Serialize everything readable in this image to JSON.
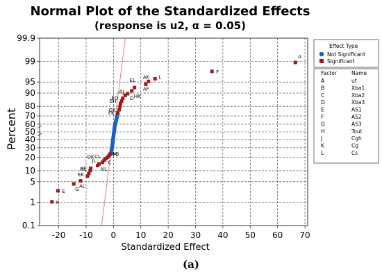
{
  "chart_data": {
    "type": "scatter",
    "title": "Normal Plot of the Standardized Effects",
    "subtitle": "(response is u2, α = 0.05)",
    "xlabel": "Standardized Effect",
    "ylabel": "Percent",
    "xlim": [
      -27,
      71
    ],
    "x_ticks": [
      -20,
      -10,
      0,
      10,
      20,
      30,
      40,
      50,
      60,
      70
    ],
    "y_scale": "normal-probability",
    "y_ticks": [
      0.1,
      1,
      5,
      10,
      20,
      30,
      40,
      50,
      60,
      70,
      80,
      90,
      95,
      99,
      99.9
    ],
    "y_tick_labels": [
      "0.1",
      "1",
      "5",
      "10",
      "20",
      "30",
      "40",
      "50",
      "60",
      "70",
      "80",
      "90",
      "95",
      "99",
      "99.9"
    ],
    "grid": true,
    "reference_line": {
      "color": "#e8827a",
      "mean": 0,
      "sd": 1.4
    },
    "legend": {
      "placement": "right",
      "title": "Effect Type",
      "entries": [
        {
          "name": "Not Significant",
          "color": "#1f5fbf",
          "marker": "circle"
        },
        {
          "name": "Significant",
          "color": "#a01818",
          "marker": "square"
        }
      ]
    },
    "factor_table": {
      "headers": [
        "Factor",
        "Name"
      ],
      "rows": [
        [
          "A",
          "ut"
        ],
        [
          "B",
          "Xba1"
        ],
        [
          "C",
          "Xba2"
        ],
        [
          "D",
          "Xba3"
        ],
        [
          "E",
          "AS1"
        ],
        [
          "F",
          "AS2"
        ],
        [
          "G",
          "AS3"
        ],
        [
          "H",
          "Tout"
        ],
        [
          "J",
          "Cgh"
        ],
        [
          "K",
          "Cg"
        ],
        [
          "L",
          "Cs"
        ]
      ]
    },
    "significant_points": [
      {
        "label": "K",
        "x": -22.5,
        "y": 1.05
      },
      {
        "label": "E",
        "x": -20.3,
        "y": 2.6
      },
      {
        "label": "G",
        "x": -14.5,
        "y": 4.3
      },
      {
        "label": "AL",
        "x": -12.0,
        "y": 5.3
      },
      {
        "label": "H",
        "x": -9.5,
        "y": 7.2
      },
      {
        "label": "EK",
        "x": -9.0,
        "y": 8.5
      },
      {
        "label": "AE",
        "x": -8.5,
        "y": 10.1
      },
      {
        "label": "",
        "x": -8.3,
        "y": 11.5
      },
      {
        "label": "DK",
        "x": -5.8,
        "y": 13.3
      },
      {
        "label": "JL",
        "x": -5.3,
        "y": 14.5
      },
      {
        "label": "KL",
        "x": -4.0,
        "y": 15.8
      },
      {
        "label": "CL",
        "x": -3.4,
        "y": 17.5
      },
      {
        "label": "C",
        "x": -2.8,
        "y": 18.8
      },
      {
        "label": "",
        "x": -2.2,
        "y": 20.2
      },
      {
        "label": "AG",
        "x": -1.6,
        "y": 21.7
      },
      {
        "label": "FL",
        "x": -1.2,
        "y": 23.2
      },
      {
        "label": "FK",
        "x": 1.6,
        "y": 73.5
      },
      {
        "label": "GK",
        "x": 2.1,
        "y": 76.8
      },
      {
        "label": "BH",
        "x": 2.4,
        "y": 80.0
      },
      {
        "label": "",
        "x": 2.6,
        "y": 82.5
      },
      {
        "label": "EG",
        "x": 3.0,
        "y": 84.5
      },
      {
        "label": "",
        "x": 3.4,
        "y": 86.6
      },
      {
        "label": "AJ",
        "x": 4.3,
        "y": 88.6
      },
      {
        "label": "D",
        "x": 5.2,
        "y": 89.6
      },
      {
        "label": "HK",
        "x": 6.7,
        "y": 91.2
      },
      {
        "label": "EL",
        "x": 7.7,
        "y": 92.8
      },
      {
        "label": "AF",
        "x": 11.8,
        "y": 94.2
      },
      {
        "label": "AK",
        "x": 12.8,
        "y": 95.2
      },
      {
        "label": "L",
        "x": 15.2,
        "y": 96.0
      },
      {
        "label": "F",
        "x": 36.0,
        "y": 97.7
      },
      {
        "label": "A",
        "x": 66.5,
        "y": 98.9
      }
    ],
    "not_significant_points": [
      {
        "x": -0.9,
        "y": 24.5
      },
      {
        "x": -0.8,
        "y": 25.8
      },
      {
        "x": -0.7,
        "y": 27.2
      },
      {
        "x": -0.6,
        "y": 28.6
      },
      {
        "x": -0.5,
        "y": 30.0
      },
      {
        "x": -0.45,
        "y": 31.4
      },
      {
        "x": -0.4,
        "y": 32.8
      },
      {
        "x": -0.35,
        "y": 34.2
      },
      {
        "x": -0.3,
        "y": 35.6
      },
      {
        "x": -0.25,
        "y": 37.0
      },
      {
        "x": -0.2,
        "y": 38.4
      },
      {
        "x": -0.15,
        "y": 39.8
      },
      {
        "x": -0.1,
        "y": 41.2
      },
      {
        "x": -0.05,
        "y": 42.6
      },
      {
        "x": 0.0,
        "y": 44.0
      },
      {
        "x": 0.05,
        "y": 45.4
      },
      {
        "x": 0.1,
        "y": 46.8
      },
      {
        "x": 0.15,
        "y": 48.2
      },
      {
        "x": 0.2,
        "y": 49.6
      },
      {
        "x": 0.25,
        "y": 51.0
      },
      {
        "x": 0.3,
        "y": 52.4
      },
      {
        "x": 0.35,
        "y": 53.8
      },
      {
        "x": 0.4,
        "y": 55.2
      },
      {
        "x": 0.45,
        "y": 56.6
      },
      {
        "x": 0.5,
        "y": 58.0
      },
      {
        "x": 0.6,
        "y": 59.4
      },
      {
        "x": 0.7,
        "y": 60.8
      },
      {
        "x": 0.8,
        "y": 62.2
      },
      {
        "x": 0.9,
        "y": 63.6
      },
      {
        "x": 1.0,
        "y": 65.0
      },
      {
        "x": 1.1,
        "y": 66.4
      },
      {
        "x": 1.2,
        "y": 67.8
      },
      {
        "x": 1.3,
        "y": 69.2
      },
      {
        "x": 1.4,
        "y": 70.6
      },
      {
        "x": 1.5,
        "y": 72.0
      }
    ]
  },
  "caption": "(a)"
}
